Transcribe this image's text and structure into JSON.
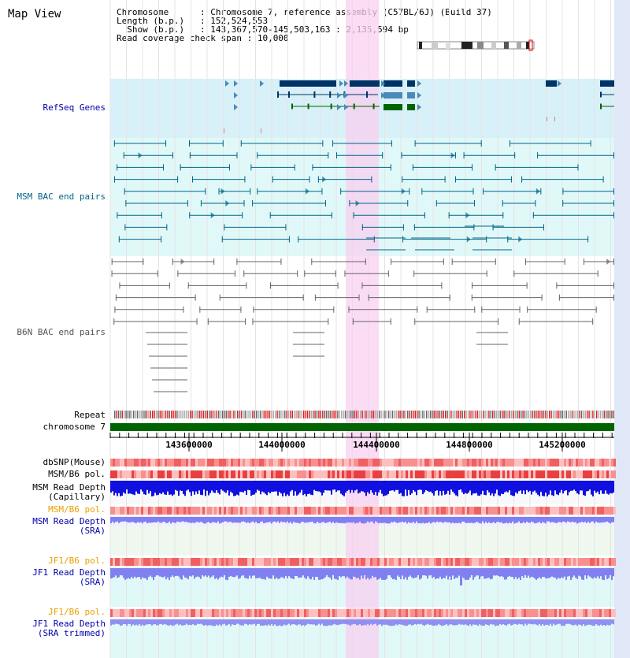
{
  "page": {
    "title": "Map View"
  },
  "info": [
    {
      "label": "Chromosome      ",
      "value": ": Chromosome 7, reference assembly (C57BL/6J) (Build 37)"
    },
    {
      "label": "Length (b.p.)   ",
      "value": ": 152,524,553"
    },
    {
      "label": "  Show (b.p.)   ",
      "value": ": 143,367,570-145,503,163 : 2,135,594 bp"
    },
    {
      "label": "Read coverage check span",
      "value": " : 10,000"
    }
  ],
  "tracks": {
    "refseq": "RefSeq Genes",
    "msm_bac": "MSM BAC end pairs",
    "b6n_bac": "B6N BAC end pairs",
    "repeat": "Repeat",
    "chromosome": "chromosome 7",
    "dbsnp": "dbSNP(Mouse)",
    "msm_pol1": "MSM/B6 pol.",
    "msm_depth_cap_1": "MSM Read Depth",
    "msm_depth_cap_2": "(Capillary)",
    "msm_pol2": "MSM/B6 pol.",
    "msm_depth_sra_1": "MSM Read Depth",
    "msm_depth_sra_2": "(SRA)",
    "jf1_pol1": "JF1/B6 pol.",
    "jf1_depth_sra_1": "JF1 Read Depth",
    "jf1_depth_sra_2": "(SRA)",
    "jf1_pol2": "JF1/B6 pol.",
    "jf1_depth_trim_1": "JF1 Read Depth",
    "jf1_depth_trim_2": "(SRA trimmed)"
  },
  "axis": {
    "ticks": [
      "143600000",
      "144000000",
      "144400000",
      "144800000",
      "145200000"
    ]
  },
  "colors": {
    "highlight": "#f8d0f0",
    "refseq_bg": "#d8f0f8",
    "bac_bg": "#e0f8f8",
    "label_blue": "#0000aa",
    "label_orange": "#e8a000",
    "msm_line": "#006688",
    "b6n_line": "#666666",
    "chrom_green": "#006400",
    "depth_dark": "#1010e0",
    "depth_light": "#8080f0"
  }
}
